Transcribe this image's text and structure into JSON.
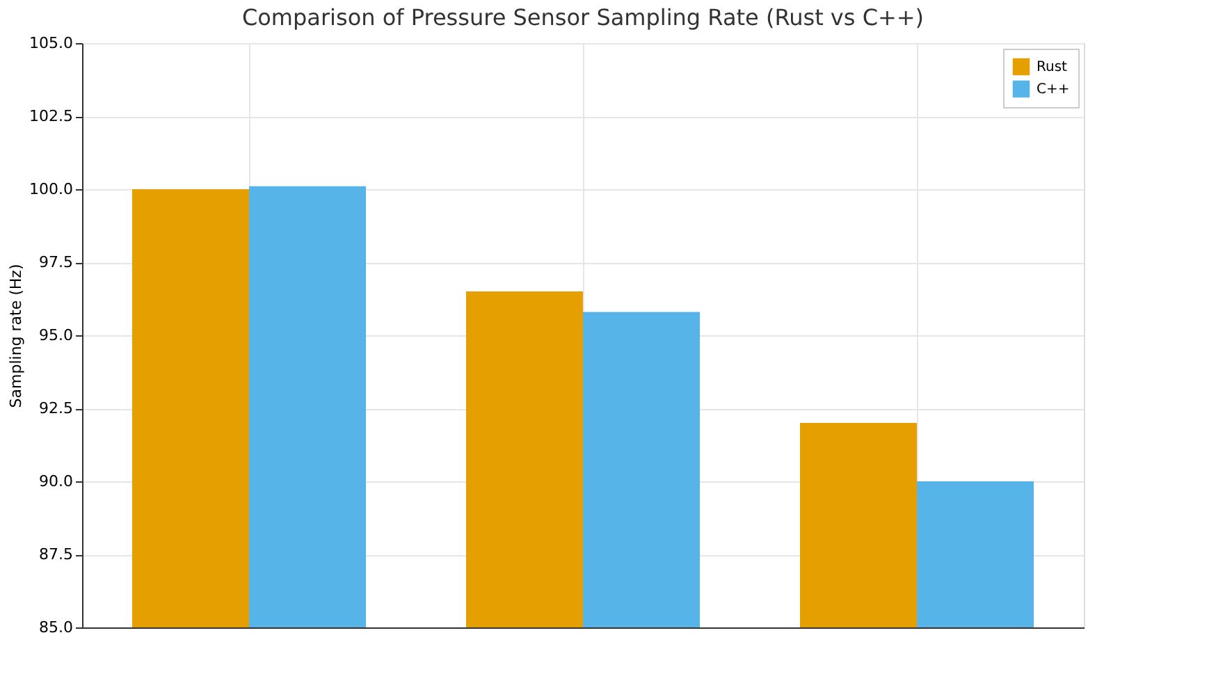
{
  "chart_data": {
    "type": "bar",
    "title": "Comparison of Pressure Sensor Sampling Rate (Rust vs C++)",
    "ylabel": "Sampling rate (Hz)",
    "categories": [
      null,
      null,
      null
    ],
    "series": [
      {
        "name": "Rust",
        "color": "#e69f00",
        "values": [
          100.0,
          96.5,
          92.0
        ]
      },
      {
        "name": "C++",
        "color": "#56b4e9",
        "values": [
          100.1,
          95.8,
          90.0
        ]
      }
    ],
    "ylim": [
      85,
      105
    ],
    "yticks": [
      {
        "value": 85,
        "label": "85.0"
      },
      {
        "value": 87.5,
        "label": "87.5"
      },
      {
        "value": 90,
        "label": "90.0"
      },
      {
        "value": 92.5,
        "label": "92.5"
      },
      {
        "value": 95,
        "label": "95.0"
      },
      {
        "value": 97.5,
        "label": "97.5"
      },
      {
        "value": 100,
        "label": "100.0"
      },
      {
        "value": 102.5,
        "label": "102.5"
      },
      {
        "value": 105,
        "label": "105.0"
      }
    ],
    "grid": true,
    "legend": "top right",
    "tick_labels": "y"
  }
}
